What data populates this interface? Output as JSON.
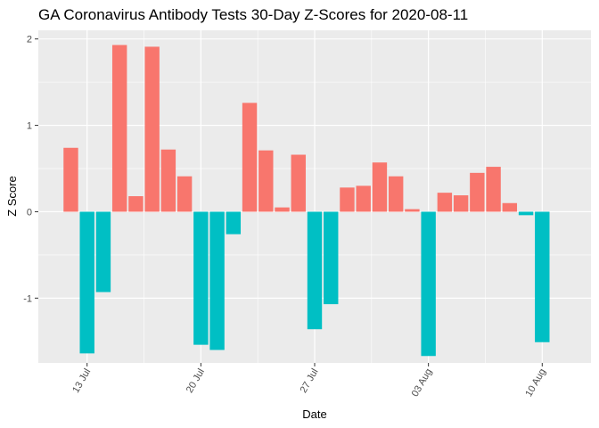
{
  "chart_data": {
    "type": "bar",
    "title": "GA Coronavirus Antibody Tests 30-Day Z-Scores for 2020-08-11",
    "xlabel": "Date",
    "ylabel": "Z Score",
    "x_ticks": [
      {
        "label": "13 Jul",
        "date": "2020-07-13"
      },
      {
        "label": "20 Jul",
        "date": "2020-07-20"
      },
      {
        "label": "27 Jul",
        "date": "2020-07-27"
      },
      {
        "label": "03 Aug",
        "date": "2020-08-03"
      },
      {
        "label": "10 Aug",
        "date": "2020-08-10"
      }
    ],
    "y_ticks": [
      -1,
      0,
      1,
      2
    ],
    "ylim": [
      -1.75,
      2.1
    ],
    "xlim": [
      "2020-07-10",
      "2020-08-13"
    ],
    "grid": true,
    "legend": "none",
    "colors": {
      "positive": "#F8766D",
      "negative": "#00BFC4",
      "panel": "#EBEBEB",
      "grid": "#FFFFFF"
    },
    "x": [
      "2020-07-12",
      "2020-07-13",
      "2020-07-14",
      "2020-07-15",
      "2020-07-16",
      "2020-07-17",
      "2020-07-18",
      "2020-07-19",
      "2020-07-20",
      "2020-07-21",
      "2020-07-22",
      "2020-07-23",
      "2020-07-24",
      "2020-07-25",
      "2020-07-26",
      "2020-07-27",
      "2020-07-28",
      "2020-07-29",
      "2020-07-30",
      "2020-07-31",
      "2020-08-01",
      "2020-08-02",
      "2020-08-03",
      "2020-08-04",
      "2020-08-05",
      "2020-08-06",
      "2020-08-07",
      "2020-08-08",
      "2020-08-09",
      "2020-08-10",
      "2020-08-11"
    ],
    "values": [
      0.74,
      -1.64,
      -0.93,
      1.93,
      0.18,
      1.91,
      0.72,
      0.41,
      -1.54,
      -1.6,
      -0.26,
      1.26,
      0.71,
      0.05,
      0.66,
      -1.36,
      -1.07,
      0.28,
      0.3,
      0.57,
      0.41,
      0.03,
      -1.67,
      0.22,
      0.19,
      0.45,
      0.52,
      0.1,
      -0.04,
      -1.51,
      0.0
    ]
  }
}
